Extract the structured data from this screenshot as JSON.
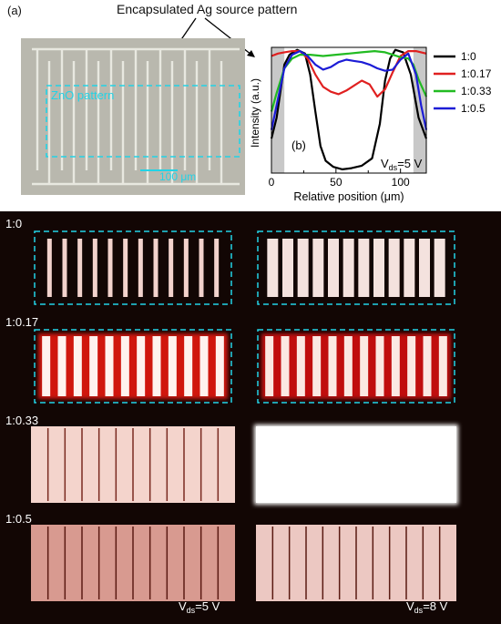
{
  "panel_a": {
    "label": "(a)",
    "annotation": "Encapsulated Ag source pattern",
    "zno_label": "ZnO pattern",
    "scale_bar": "100 μm"
  },
  "chart_data": {
    "type": "line",
    "panel_label": "(b)",
    "xlabel": "Relative position (μm)",
    "ylabel": "Intensity (a.u.)",
    "xlim": [
      0,
      120
    ],
    "ylim": [
      0,
      1.02
    ],
    "xticks": [
      0,
      50,
      100
    ],
    "annotation": "Vds=5 V",
    "grid": false,
    "legend_position": "right-outside",
    "shaded_regions": [
      [
        0,
        10
      ],
      [
        110,
        120
      ]
    ],
    "series": [
      {
        "name": "1:0",
        "color": "#000000",
        "x": [
          0,
          4,
          10,
          14,
          20,
          26,
          30,
          34,
          38,
          42,
          48,
          55,
          62,
          70,
          78,
          84,
          88,
          92,
          96,
          102,
          108,
          114,
          120
        ],
        "y": [
          0.28,
          0.45,
          0.88,
          0.96,
          1.0,
          0.97,
          0.8,
          0.5,
          0.22,
          0.1,
          0.05,
          0.03,
          0.04,
          0.06,
          0.12,
          0.4,
          0.75,
          0.93,
          1.0,
          0.98,
          0.8,
          0.45,
          0.28
        ]
      },
      {
        "name": "1:0.17",
        "color": "#e02020",
        "x": [
          0,
          5,
          10,
          16,
          22,
          28,
          34,
          40,
          46,
          52,
          58,
          64,
          70,
          76,
          82,
          88,
          94,
          100,
          106,
          112,
          116,
          120
        ],
        "y": [
          0.95,
          0.97,
          0.98,
          0.99,
          0.99,
          0.93,
          0.8,
          0.7,
          0.66,
          0.64,
          0.67,
          0.71,
          0.75,
          0.72,
          0.62,
          0.68,
          0.82,
          0.95,
          0.99,
          0.99,
          0.98,
          0.97
        ]
      },
      {
        "name": "1:0.33",
        "color": "#22bb22",
        "x": [
          0,
          4,
          10,
          16,
          22,
          30,
          40,
          50,
          60,
          70,
          80,
          88,
          94,
          100,
          106,
          110,
          114,
          120
        ],
        "y": [
          0.5,
          0.65,
          0.85,
          0.93,
          0.96,
          0.96,
          0.95,
          0.96,
          0.97,
          0.98,
          0.99,
          0.98,
          0.96,
          0.94,
          0.93,
          0.88,
          0.76,
          0.62
        ]
      },
      {
        "name": "1:0.5",
        "color": "#1c1cd6",
        "x": [
          0,
          4,
          10,
          16,
          22,
          28,
          34,
          40,
          46,
          52,
          58,
          64,
          70,
          76,
          82,
          88,
          94,
          100,
          106,
          112,
          116,
          120
        ],
        "y": [
          0.35,
          0.55,
          0.85,
          0.96,
          0.99,
          0.95,
          0.88,
          0.84,
          0.86,
          0.9,
          0.92,
          0.91,
          0.9,
          0.88,
          0.85,
          0.83,
          0.84,
          0.92,
          0.97,
          0.8,
          0.55,
          0.35
        ]
      }
    ]
  },
  "panel_bottom": {
    "rows": [
      {
        "ratio": "1:0"
      },
      {
        "ratio": "1:0.17"
      },
      {
        "ratio": "1:0.33"
      },
      {
        "ratio": "1:0.5"
      }
    ],
    "vds_left": "Vds=5 V",
    "vds_right": "Vds=8 V"
  },
  "colors": {
    "cyan_dash": "#22d3e6",
    "background_dark": "#120604",
    "glow": "#f6d2cc",
    "micrograph_bg": "#b9b8ae"
  }
}
